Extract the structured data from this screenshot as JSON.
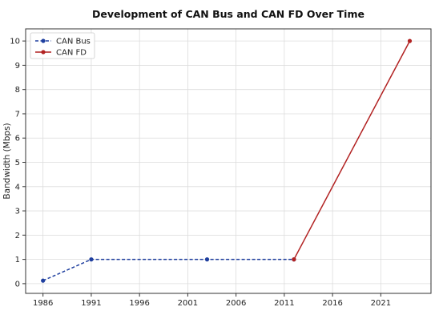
{
  "chart_data": {
    "type": "line",
    "title": "Development of CAN Bus and CAN FD Over Time",
    "xlabel": "",
    "ylabel": "Bandwidth (Mbps)",
    "xlim": [
      1984.2,
      2026.2
    ],
    "ylim": [
      -0.4,
      10.5
    ],
    "xticks": [
      1986,
      1991,
      1996,
      2001,
      2006,
      2011,
      2016,
      2021
    ],
    "yticks": [
      0,
      1,
      2,
      3,
      4,
      5,
      6,
      7,
      8,
      9,
      10
    ],
    "grid": true,
    "legend_position": "top-left",
    "series": [
      {
        "name": "CAN Bus",
        "color": "#1f3f9f",
        "line_style": "dashed",
        "x": [
          1986,
          1991,
          2003,
          2012
        ],
        "y": [
          0.125,
          1,
          1,
          1
        ]
      },
      {
        "name": "CAN FD",
        "color": "#b22222",
        "line_style": "solid",
        "x": [
          2012,
          2024
        ],
        "y": [
          1,
          10
        ]
      }
    ]
  }
}
